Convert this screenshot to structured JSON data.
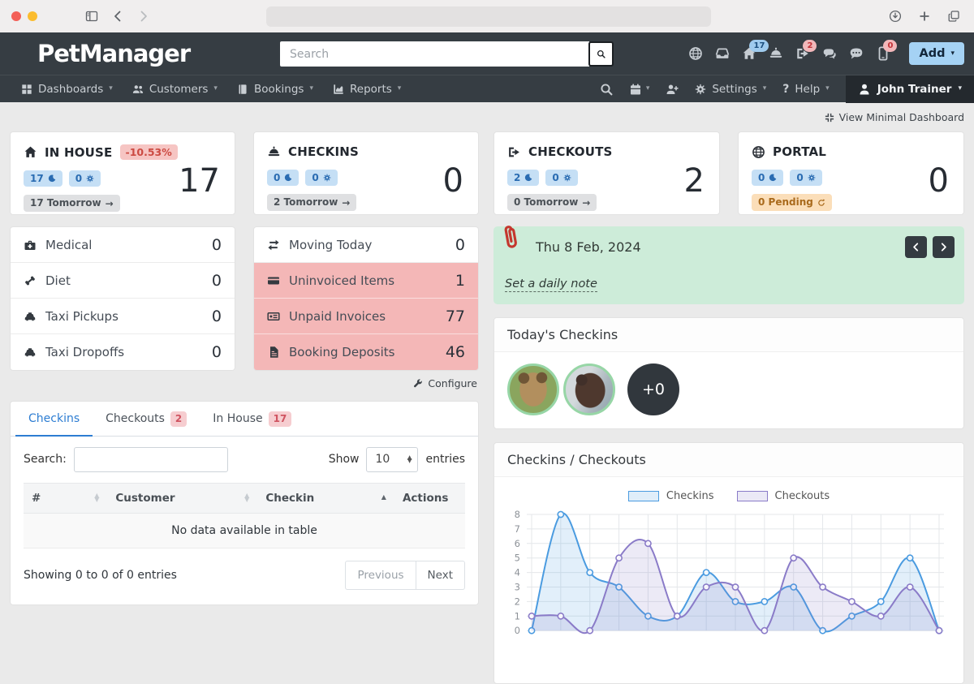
{
  "browser": {
    "url": ""
  },
  "navbar": {
    "brand": "PetManager",
    "search_placeholder": "Search",
    "home_badge": "17",
    "signout_badge": "2",
    "phone_badge": "0",
    "add_label": "Add",
    "menu": [
      {
        "label": "Dashboards"
      },
      {
        "label": "Customers"
      },
      {
        "label": "Bookings"
      },
      {
        "label": "Reports"
      }
    ],
    "settings_label": "Settings",
    "help_label": "Help",
    "user_label": "John Trainer"
  },
  "page": {
    "view_minimal": "View Minimal Dashboard"
  },
  "stats": [
    {
      "title": "IN HOUSE",
      "delta": "-10.53%",
      "value": "17",
      "moon": "17",
      "gear": "0",
      "foot": "17 Tomorrow"
    },
    {
      "title": "CHECKINS",
      "value": "0",
      "moon": "0",
      "gear": "0",
      "foot": "2 Tomorrow"
    },
    {
      "title": "CHECKOUTS",
      "value": "2",
      "moon": "2",
      "gear": "0",
      "foot": "0 Tomorrow"
    },
    {
      "title": "PORTAL",
      "value": "0",
      "moon": "0",
      "gear": "0",
      "foot": "0 Pending"
    }
  ],
  "quick": {
    "left": [
      {
        "label": "Medical",
        "value": "0"
      },
      {
        "label": "Diet",
        "value": "0"
      },
      {
        "label": "Taxi Pickups",
        "value": "0"
      },
      {
        "label": "Taxi Dropoffs",
        "value": "0"
      }
    ],
    "right": [
      {
        "label": "Moving Today",
        "value": "0"
      },
      {
        "label": "Uninvoiced Items",
        "value": "1"
      },
      {
        "label": "Unpaid Invoices",
        "value": "77"
      },
      {
        "label": "Booking Deposits",
        "value": "46"
      }
    ],
    "configure": "Configure"
  },
  "banner": {
    "date": "Thu 8 Feb, 2024",
    "note_link": "Set a daily note"
  },
  "today": {
    "title": "Today's Checkins",
    "overflow": "+0"
  },
  "tablecard": {
    "tabs": [
      {
        "label": "Checkins",
        "badge": ""
      },
      {
        "label": "Checkouts",
        "badge": "2"
      },
      {
        "label": "In House",
        "badge": "17"
      }
    ],
    "search_label": "Search:",
    "show_label": "Show",
    "show_value": "10",
    "entries_label": "entries",
    "columns": [
      "#",
      "Customer",
      "Checkin",
      "Actions"
    ],
    "empty_text": "No data available in table",
    "summary": "Showing 0 to 0 of 0 entries",
    "prev_label": "Previous",
    "next_label": "Next"
  },
  "chart_card": {
    "title": "Checkins / Checkouts"
  },
  "chart_data": {
    "type": "area",
    "x_count": 15,
    "series": [
      {
        "name": "Checkins",
        "color": "#4A9BE0",
        "values": [
          0,
          8,
          4,
          3,
          1,
          1,
          4,
          2,
          2,
          3,
          0,
          1,
          2,
          5,
          0
        ]
      },
      {
        "name": "Checkouts",
        "color": "#8A7BC8",
        "values": [
          1,
          1,
          0,
          5,
          6,
          1,
          3,
          3,
          0,
          5,
          3,
          2,
          1,
          3,
          0
        ]
      }
    ],
    "ylim": [
      0,
      8
    ],
    "yticks": [
      0,
      1,
      2,
      3,
      4,
      5,
      6,
      7,
      8
    ],
    "legend_position": "top",
    "grid": true
  }
}
